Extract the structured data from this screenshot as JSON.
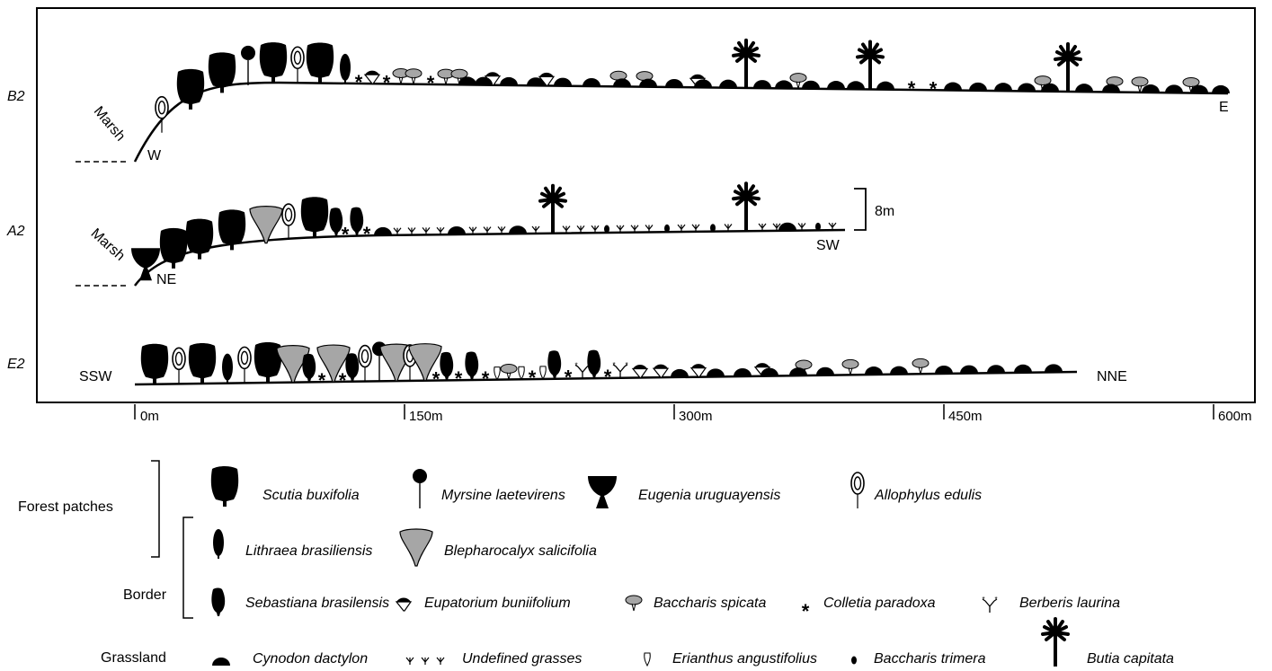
{
  "transects": [
    {
      "id": "b2",
      "label": "B2",
      "left_label": "Marsh",
      "start_label": "W",
      "end_label": "E"
    },
    {
      "id": "a2",
      "label": "A2",
      "left_label": "Marsh",
      "start_label": "NE",
      "end_label": "SW"
    },
    {
      "id": "e2",
      "label": "E2",
      "start_label": "SSW",
      "end_label": "NNE"
    }
  ],
  "scale_bar_label": "8m",
  "distance_axis": [
    "0m",
    "150m",
    "300m",
    "450m",
    "600m"
  ],
  "legend_groups": {
    "forest": "Forest patches",
    "border": "Border",
    "grassland": "Grassland"
  },
  "species": {
    "scutia": "Scutia buxifolia",
    "myrsine": "Myrsine laetevirens",
    "eugenia": "Eugenia uruguayensis",
    "allophylus": "Allophylus edulis",
    "lithraea": "Lithraea brasiliensis",
    "blepharocalyx": "Blepharocalyx salicifolia",
    "sebastiana": "Sebastiana brasilensis",
    "eupatorium": "Eupatorium buniifolium",
    "baccharis_spicata": "Baccharis spicata",
    "colletia": "Colletia paradoxa",
    "berberis": "Berberis laurina",
    "cynodon": "Cynodon dactylon",
    "grasses": "Undefined grasses",
    "erianthus": "Erianthus angustifolius",
    "baccharis_trimera": "Baccharis trimera",
    "butia": "Butia capitata"
  },
  "colors": {
    "fill": "#000000",
    "grey": "#a6a6a6"
  }
}
